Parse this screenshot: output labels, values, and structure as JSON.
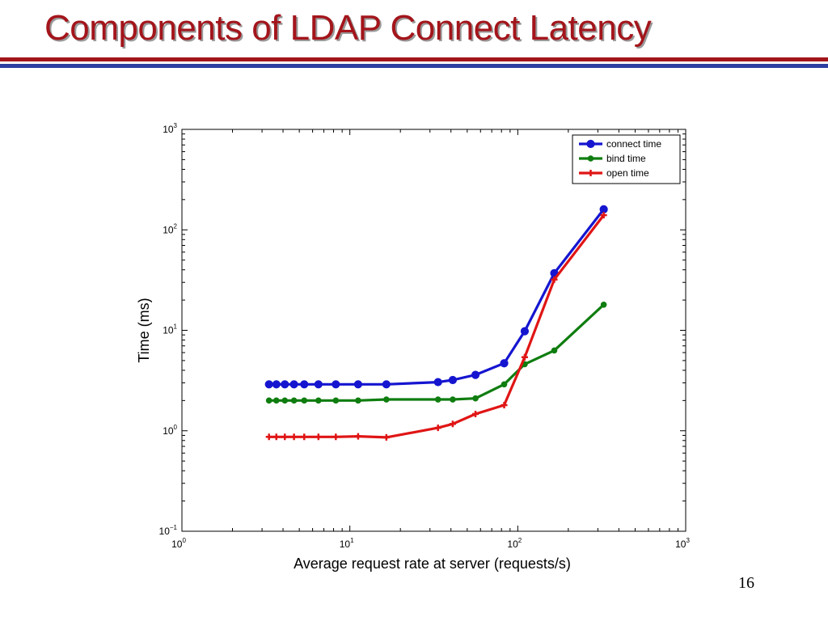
{
  "slide": {
    "title": "Components of LDAP Connect Latency",
    "page_number": "16"
  },
  "colors": {
    "title": "#a3151b",
    "rule_red": "#a3151b",
    "rule_blue": "#2e3fa0"
  },
  "chart_data": {
    "type": "line",
    "title": "",
    "xlabel": "Average request rate at server (requests/s)",
    "ylabel": "Time (ms)",
    "xscale": "log",
    "yscale": "log",
    "xlim": [
      1,
      1000
    ],
    "ylim": [
      0.1,
      1000
    ],
    "xticks": [
      {
        "value": 1,
        "base": "10",
        "exp": "0"
      },
      {
        "value": 10,
        "base": "10",
        "exp": "1"
      },
      {
        "value": 100,
        "base": "10",
        "exp": "2"
      },
      {
        "value": 1000,
        "base": "10",
        "exp": "3"
      }
    ],
    "yticks": [
      {
        "value": 0.1,
        "base": "10",
        "exp": "−1"
      },
      {
        "value": 1,
        "base": "10",
        "exp": "0"
      },
      {
        "value": 10,
        "base": "10",
        "exp": "1"
      },
      {
        "value": 100,
        "base": "10",
        "exp": "2"
      },
      {
        "value": 1000,
        "base": "10",
        "exp": "3"
      }
    ],
    "grid": false,
    "legend": "top-right",
    "x": [
      3.3,
      3.65,
      4.1,
      4.65,
      5.35,
      6.5,
      8.25,
      11.2,
      16.5,
      33.5,
      41,
      56,
      83,
      110,
      165,
      325
    ],
    "series": [
      {
        "name": "connect time",
        "color": "#1515d0",
        "marker": "circle",
        "values": [
          2.9,
          2.9,
          2.9,
          2.9,
          2.9,
          2.9,
          2.9,
          2.9,
          2.9,
          3.05,
          3.2,
          3.6,
          4.7,
          9.8,
          37,
          160
        ]
      },
      {
        "name": "bind time",
        "color": "#0f7d0f",
        "marker": "dot",
        "values": [
          2.0,
          2.0,
          2.0,
          2.0,
          2.0,
          2.0,
          2.0,
          2.0,
          2.05,
          2.05,
          2.05,
          2.1,
          2.9,
          4.6,
          6.3,
          18
        ]
      },
      {
        "name": "open time",
        "color": "#e01515",
        "marker": "plus",
        "values": [
          0.87,
          0.87,
          0.87,
          0.87,
          0.87,
          0.87,
          0.87,
          0.88,
          0.86,
          1.07,
          1.17,
          1.47,
          1.8,
          5.4,
          32,
          140
        ]
      }
    ]
  }
}
